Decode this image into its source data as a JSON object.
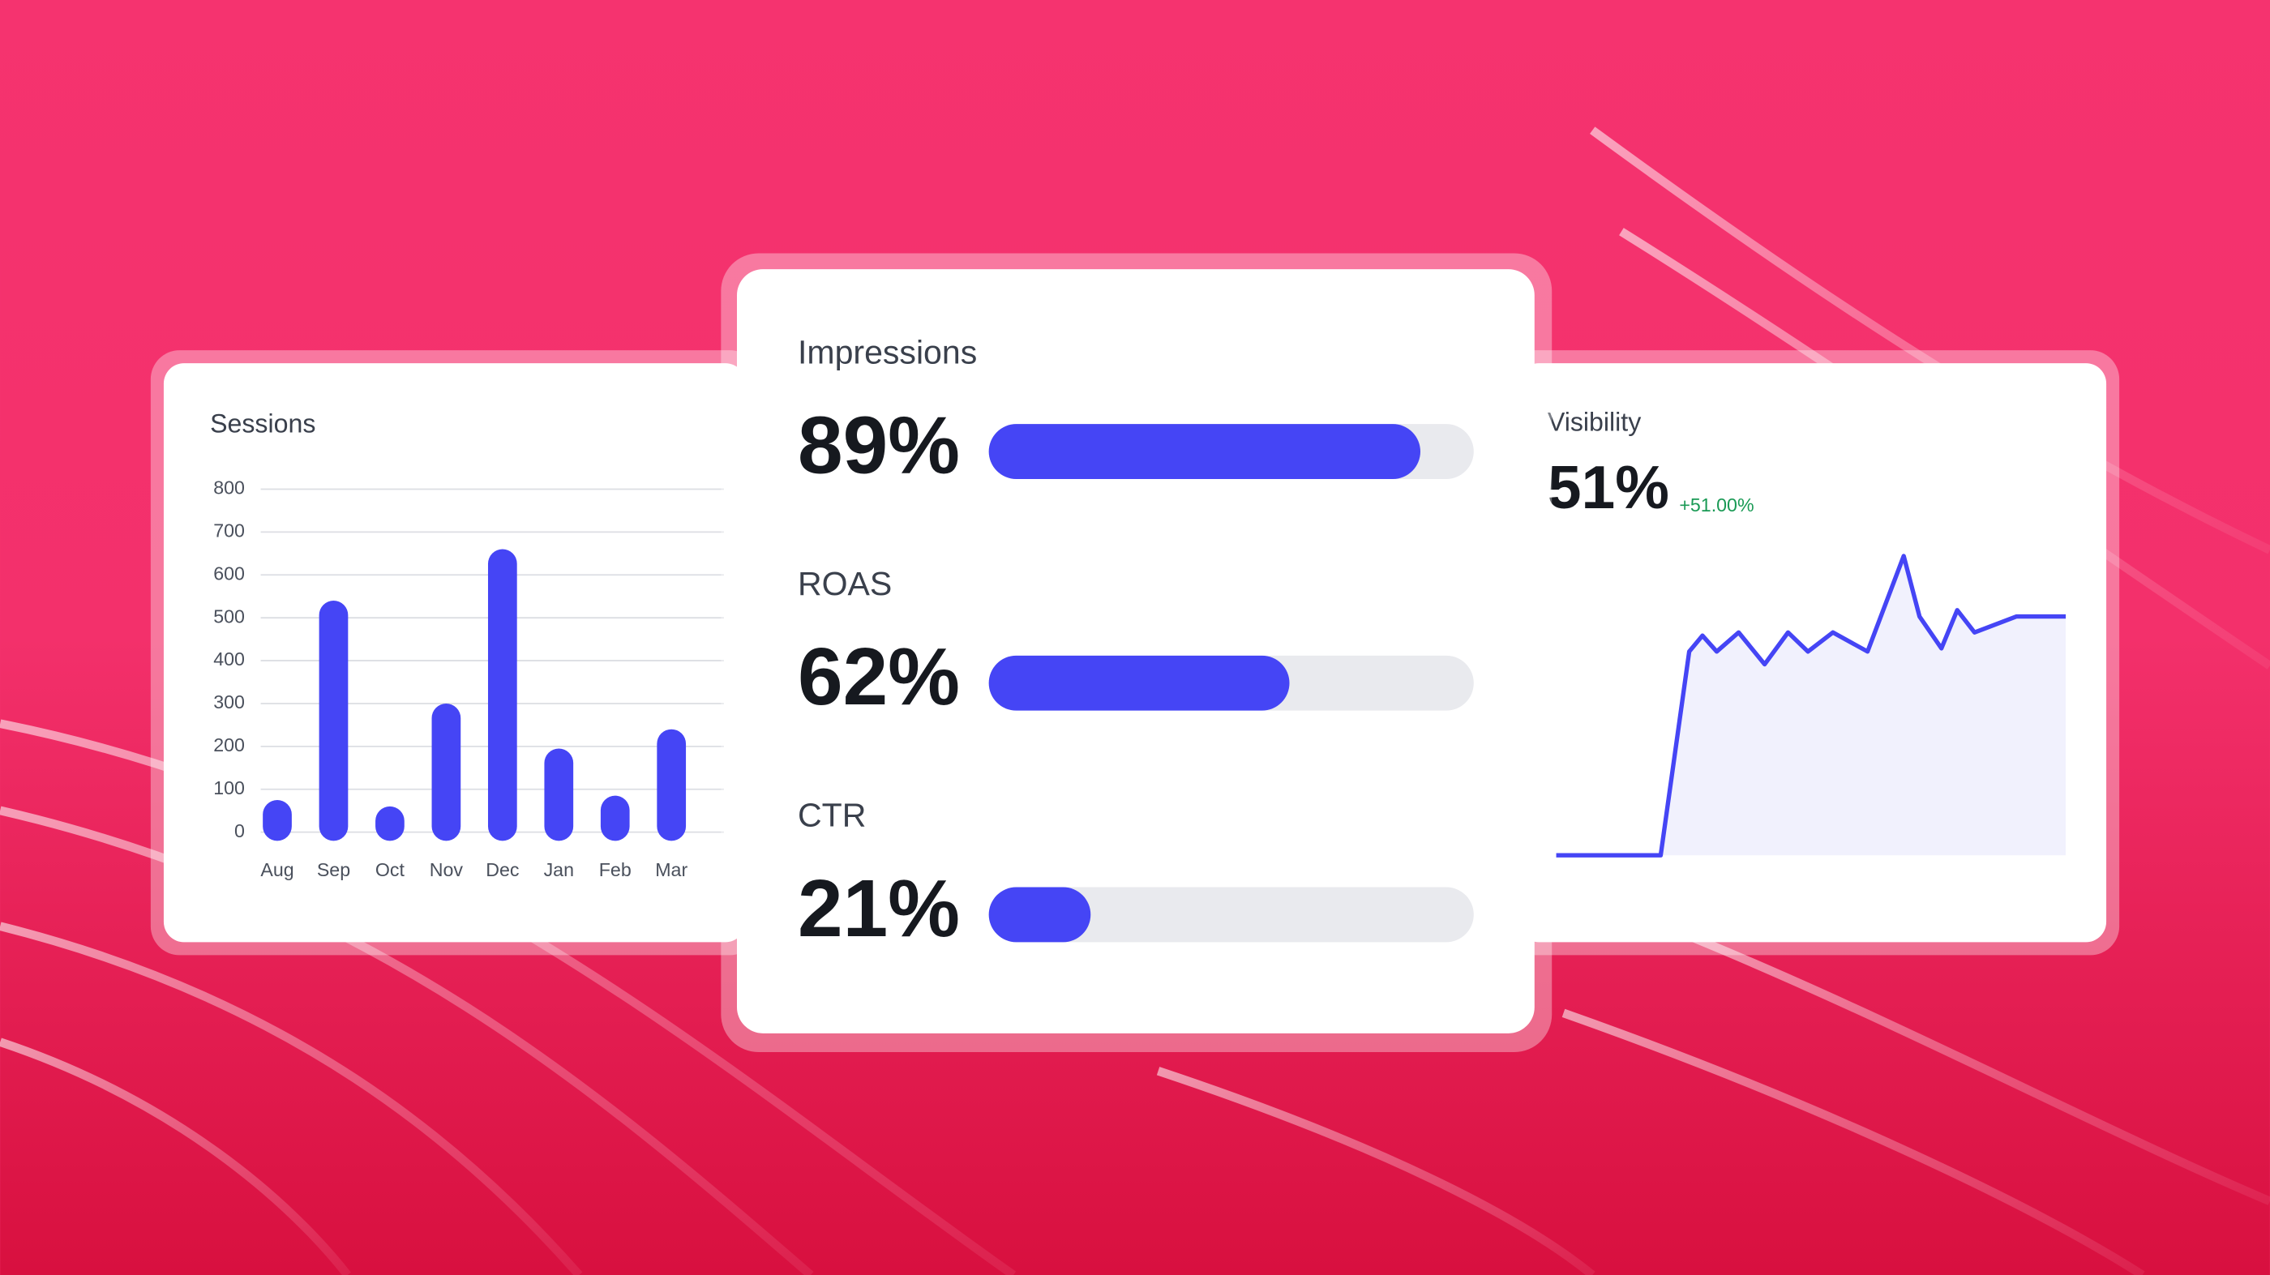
{
  "chart_data": [
    {
      "type": "bar",
      "title": "Sessions",
      "categories": [
        "Aug",
        "Sep",
        "Oct",
        "Nov",
        "Dec",
        "Jan",
        "Feb",
        "Mar"
      ],
      "values": [
        75,
        540,
        60,
        300,
        660,
        195,
        85,
        240
      ],
      "color": "#4545f5",
      "ylim": [
        0,
        800
      ],
      "yticks": [
        0,
        100,
        200,
        300,
        400,
        500,
        600,
        700,
        800
      ],
      "grid": true
    },
    {
      "type": "progress",
      "categories": [
        "Impressions",
        "ROAS",
        "CTR"
      ],
      "values": [
        89,
        62,
        21
      ],
      "value_labels": [
        "89%",
        "62%",
        "21%"
      ],
      "color": "#4545f5",
      "xlim": [
        0,
        100
      ]
    },
    {
      "type": "area",
      "title": "Visibility",
      "headline": "51%",
      "change": "+51.00%",
      "x": [
        0,
        20.5,
        26.1,
        28.7,
        31.5,
        35.8,
        40.9,
        45.5,
        49.4,
        54.3,
        61.1,
        68.2,
        71.3,
        75.6,
        78.7,
        82.1,
        90.3,
        100
      ],
      "values": [
        0,
        0,
        64,
        69,
        64,
        70,
        60,
        70,
        64,
        70,
        64,
        94,
        75,
        65,
        77,
        70,
        75,
        75
      ],
      "color": "#4545f5",
      "xlim": [
        0,
        100
      ],
      "ylim": [
        0,
        100
      ]
    }
  ]
}
